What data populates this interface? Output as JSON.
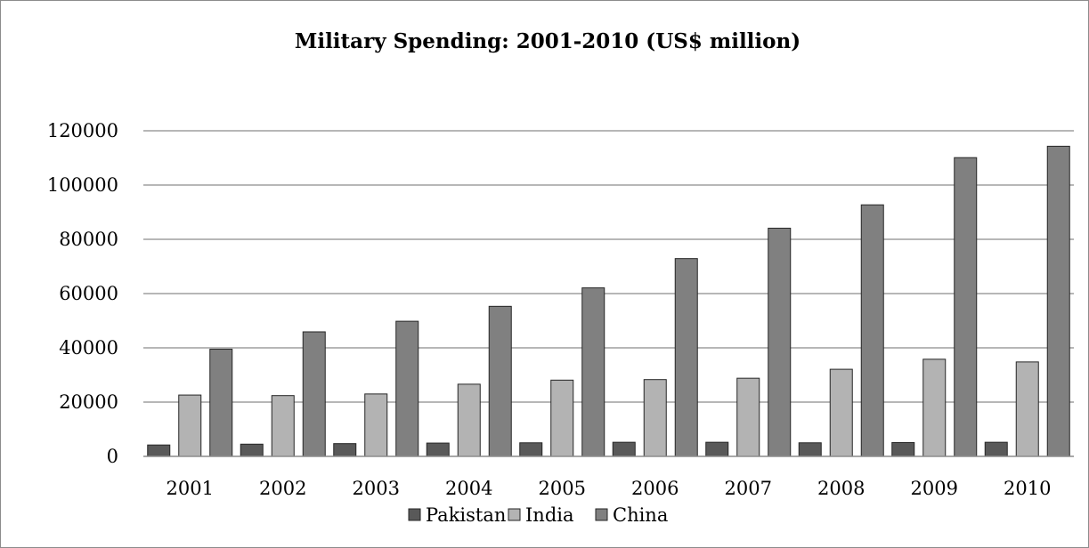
{
  "chart_data": {
    "type": "bar",
    "title": "Military Spending: 2001-2010 (US$ million)",
    "xlabel": "",
    "ylabel": "",
    "categories": [
      "2001",
      "2002",
      "2003",
      "2004",
      "2005",
      "2006",
      "2007",
      "2008",
      "2009",
      "2010"
    ],
    "ylim": [
      0,
      120000
    ],
    "yticks": [
      0,
      20000,
      40000,
      60000,
      80000,
      100000,
      120000
    ],
    "grid": true,
    "legend_position": "bottom",
    "series": [
      {
        "name": "Pakistan",
        "color": "#595959",
        "values": [
          4200,
          4500,
          4700,
          4900,
          5000,
          5200,
          5200,
          5000,
          5100,
          5200
        ]
      },
      {
        "name": "India",
        "color": "#b3b3b3",
        "values": [
          22600,
          22400,
          23000,
          26600,
          28100,
          28300,
          28800,
          32100,
          35800,
          34800
        ]
      },
      {
        "name": "China",
        "color": "#808080",
        "values": [
          39500,
          45900,
          49800,
          55300,
          62100,
          72900,
          84100,
          92700,
          110100,
          114300
        ]
      }
    ]
  }
}
